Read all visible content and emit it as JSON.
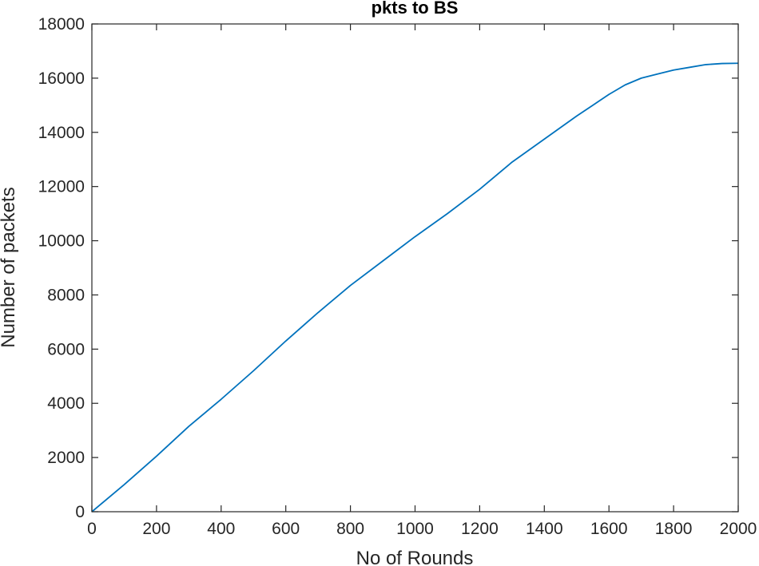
{
  "chart_data": {
    "type": "line",
    "title": "pkts to BS",
    "xlabel": "No of Rounds",
    "ylabel": "Number of packets",
    "xlim": [
      0,
      2000
    ],
    "ylim": [
      0,
      18000
    ],
    "xticks": [
      0,
      200,
      400,
      600,
      800,
      1000,
      1200,
      1400,
      1600,
      1800,
      2000
    ],
    "yticks": [
      0,
      2000,
      4000,
      6000,
      8000,
      10000,
      12000,
      14000,
      16000,
      18000
    ],
    "grid": false,
    "legend": "none",
    "line_color": "#0072BD",
    "series": [
      {
        "x": [
          0,
          100,
          200,
          300,
          400,
          500,
          600,
          700,
          800,
          900,
          1000,
          1100,
          1200,
          1300,
          1400,
          1500,
          1550,
          1600,
          1650,
          1700,
          1750,
          1800,
          1850,
          1900,
          1950,
          2000
        ],
        "values": [
          0,
          1000,
          2050,
          3150,
          4150,
          5200,
          6300,
          7350,
          8350,
          9250,
          10150,
          11000,
          11900,
          12900,
          13750,
          14600,
          15000,
          15400,
          15750,
          16000,
          16150,
          16300,
          16400,
          16500,
          16540,
          16550
        ]
      }
    ]
  }
}
